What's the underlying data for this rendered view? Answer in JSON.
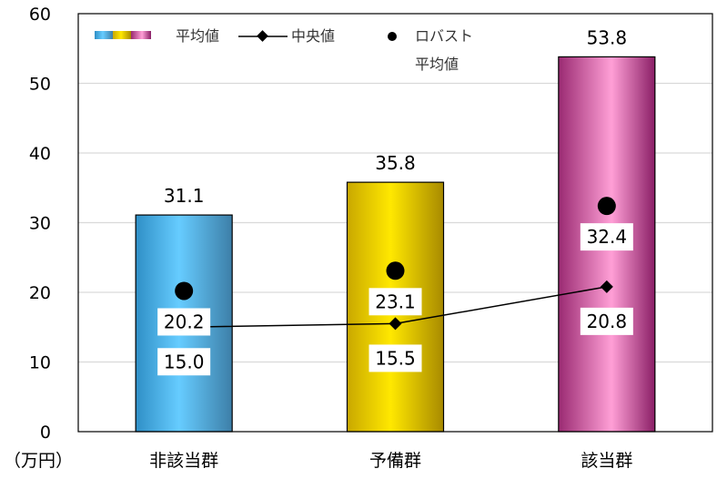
{
  "chart_data": {
    "type": "bar",
    "unit_label": "（万円）",
    "categories": [
      "非該当群",
      "予備群",
      "該当群"
    ],
    "ylim": [
      0,
      60
    ],
    "yticks": [
      0,
      10,
      20,
      30,
      40,
      50,
      60
    ],
    "grid": true,
    "legend_position": "top-left",
    "series": [
      {
        "name": "平均値",
        "type": "bar",
        "values": [
          31.1,
          35.8,
          53.8
        ]
      },
      {
        "name": "中央値",
        "type": "line",
        "values": [
          15.0,
          15.5,
          20.8
        ]
      },
      {
        "name": "ロバスト平均値",
        "type": "scatter",
        "values": [
          20.2,
          23.1,
          32.4
        ]
      }
    ],
    "legend": {
      "mean": "平均値",
      "median": "中央値",
      "robust_line1": "ロバスト",
      "robust_line2": "平均値"
    },
    "colors": {
      "bars": [
        "#4fb6e8",
        "#f0d000",
        "#e060a8"
      ],
      "median": "#000000",
      "robust": "#000000",
      "grid": "#d9d9d9",
      "axis": "#000000"
    }
  }
}
